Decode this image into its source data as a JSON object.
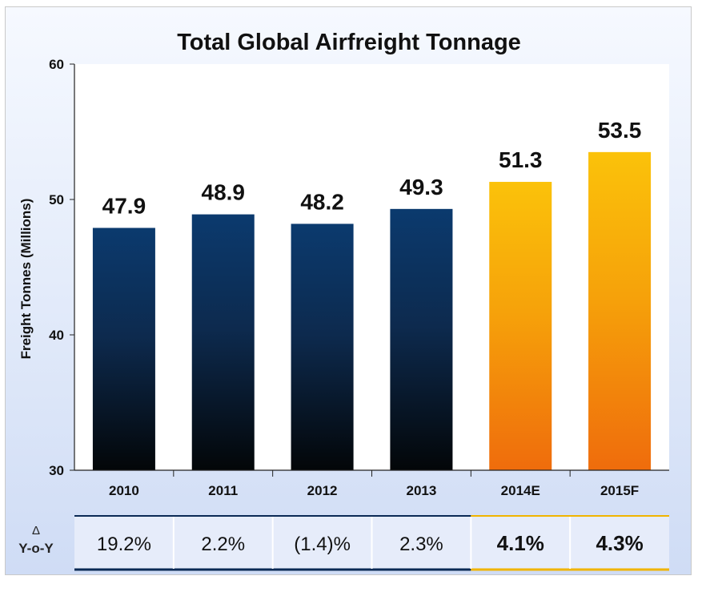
{
  "chart_data": {
    "type": "bar",
    "title": "Total Global Airfreight Tonnage",
    "ylabel": "Freight Tonnes (Millions)",
    "xlabel": "",
    "ylim": [
      30,
      60
    ],
    "yticks": [
      30,
      40,
      50,
      60
    ],
    "grid": false,
    "categories": [
      "2010",
      "2011",
      "2012",
      "2013",
      "2014E",
      "2015F"
    ],
    "values": [
      47.9,
      48.9,
      48.2,
      49.3,
      51.3,
      53.5
    ],
    "value_labels": [
      "47.9",
      "48.9",
      "48.2",
      "49.3",
      "51.3",
      "53.5"
    ],
    "bar_styles": [
      "actual",
      "actual",
      "actual",
      "actual",
      "forecast",
      "forecast"
    ],
    "colors": {
      "actual_top": "#0b3a6e",
      "actual_bottom": "#030608",
      "forecast_top": "#fbc20a",
      "forecast_bottom": "#ef6c0c",
      "actual_line": "#0b2a55",
      "forecast_line": "#f0b400"
    }
  },
  "yoy_table": {
    "label_symbol": "Δ",
    "label": "Y-o-Y",
    "values": [
      "19.2%",
      "2.2%",
      "(1.4)%",
      "2.3%",
      "4.1%",
      "4.3%"
    ],
    "emphasis": [
      false,
      false,
      false,
      false,
      true,
      true
    ]
  }
}
